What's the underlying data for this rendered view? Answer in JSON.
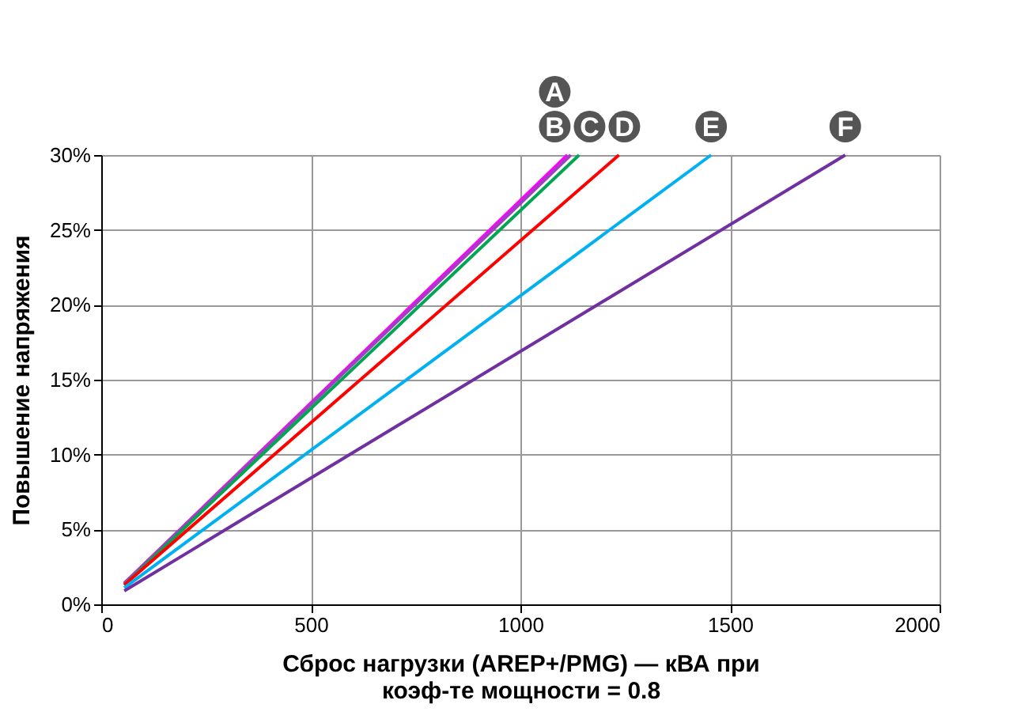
{
  "chart_data": {
    "type": "line",
    "xlabel": "Сброс нагрузки (AREP+/PMG) — кВА при\nкоэф-те мощности = 0.8",
    "ylabel": "Повышение напряжения",
    "series": [
      {
        "name": "A",
        "color": "#ff00ff",
        "x": [
          55,
          1112
        ],
        "values": [
          1.4,
          30
        ]
      },
      {
        "name": "B",
        "color": "#a040c0",
        "x": [
          55,
          1120
        ],
        "values": [
          1.4,
          30
        ]
      },
      {
        "name": "C",
        "color": "#00a651",
        "x": [
          55,
          1140
        ],
        "values": [
          1.3,
          30
        ]
      },
      {
        "name": "D",
        "color": "#ff0000",
        "x": [
          55,
          1235
        ],
        "values": [
          1.3,
          30
        ]
      },
      {
        "name": "E",
        "color": "#00b0f0",
        "x": [
          55,
          1455
        ],
        "values": [
          1.1,
          30
        ]
      },
      {
        "name": "F",
        "color": "#7030a0",
        "x": [
          55,
          1775
        ],
        "values": [
          0.9,
          30
        ]
      }
    ],
    "xlim": [
      0,
      2000
    ],
    "xticks": [
      0,
      500,
      1000,
      1500,
      2000
    ],
    "ylim": [
      0,
      30
    ],
    "yticks": [
      {
        "value": 0,
        "label": "0%"
      },
      {
        "value": 5,
        "label": "5%"
      },
      {
        "value": 10,
        "label": "10%"
      },
      {
        "value": 15,
        "label": "15%"
      },
      {
        "value": 20,
        "label": "20%"
      },
      {
        "value": 25,
        "label": "25%"
      },
      {
        "value": 30,
        "label": "30%"
      }
    ],
    "grid": true,
    "marker": "none",
    "line_style": "solid"
  }
}
